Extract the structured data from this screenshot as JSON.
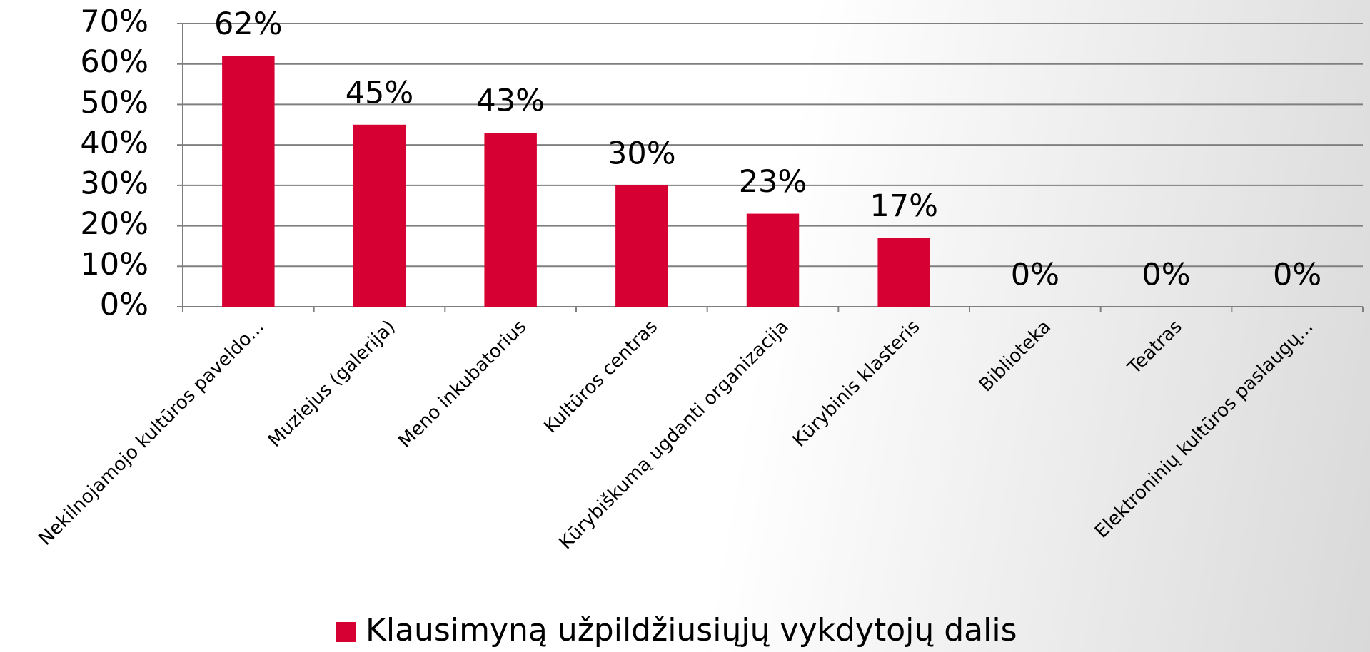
{
  "chart_data": {
    "type": "bar",
    "categories": [
      "Nekilnojamojo kultūros paveldo...",
      "Muziejus (galerija)",
      "Meno inkubatorius",
      "Kultūros centras",
      "Kūrybiškumą ugdanti organizacija",
      "Kūrybinis klasteris",
      "Biblioteka",
      "Teatras",
      "Elektroninių kultūros paslaugų..."
    ],
    "series": [
      {
        "name": "Klausimyną užpildžiusiųjų vykdytojų dalis",
        "color": "#d70032",
        "values": [
          62,
          45,
          43,
          30,
          23,
          17,
          0,
          0,
          0
        ],
        "value_labels": [
          "62%",
          "45%",
          "43%",
          "30%",
          "23%",
          "17%",
          "0%",
          "0%",
          "0%"
        ]
      }
    ],
    "ylim": [
      0,
      70
    ],
    "yticks": [
      {
        "value": 0,
        "label": "0%"
      },
      {
        "value": 10,
        "label": "10%"
      },
      {
        "value": 20,
        "label": "20%"
      },
      {
        "value": 30,
        "label": "30%"
      },
      {
        "value": 40,
        "label": "40%"
      },
      {
        "value": 50,
        "label": "50%"
      },
      {
        "value": 60,
        "label": "60%"
      },
      {
        "value": 70,
        "label": "70%"
      }
    ],
    "grid": true,
    "legend": "bottom"
  }
}
